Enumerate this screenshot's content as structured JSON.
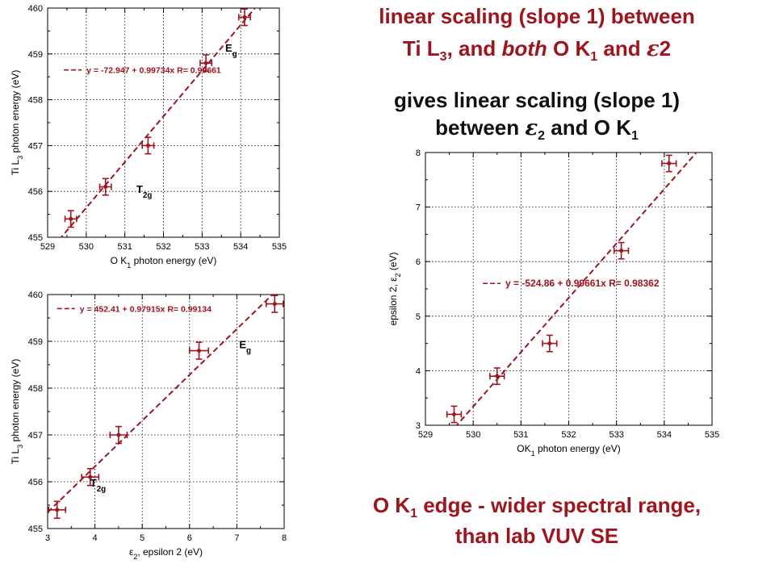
{
  "headings": {
    "line1": "linear scaling (slope 1) between",
    "line2_pre": "Ti L",
    "line2_sub": "3",
    "line2_mid": ", and ",
    "line2_ital": "both",
    "line2_mid2": " O K",
    "line2_sub2": "1",
    "line2_end": " and ",
    "line2_eps": "ε",
    "line2_epsnum": "2",
    "line3": "gives linear scaling (slope 1)",
    "line4_pre": "between ",
    "line4_eps": "ε",
    "line4_epssub": "2",
    "line4_mid": " and O K",
    "line4_sub": "1",
    "bottom1_pre": "O K",
    "bottom1_sub": "1",
    "bottom1_post": " edge - wider spectral range,",
    "bottom2": "than lab VUV SE"
  },
  "colors": {
    "accent": "#a0141e",
    "grid": "#000000"
  },
  "chart_data": [
    {
      "type": "scatter",
      "xlabel_pre": "O K",
      "xlabel_sub": "1",
      "xlabel_post": " photon energy (eV)",
      "ylabel_pre": "Ti L",
      "ylabel_sub": "3",
      "ylabel_post": " photon energy (eV)",
      "xlim": [
        529,
        535
      ],
      "ylim": [
        455,
        460
      ],
      "xticks": [
        "529",
        "530",
        "531",
        "532",
        "533",
        "534",
        "535"
      ],
      "yticks": [
        "455",
        "456",
        "457",
        "458",
        "459",
        "460"
      ],
      "grid": true,
      "fit_label": "y = -72.947 + 0.99734x   R= 0.99661",
      "fit": {
        "intercept": -72.947,
        "slope": 0.99734
      },
      "points": [
        {
          "x": 529.6,
          "y": 455.4,
          "xerr": 0.15,
          "yerr": 0.18
        },
        {
          "x": 530.5,
          "y": 456.1,
          "xerr": 0.15,
          "yerr": 0.18
        },
        {
          "x": 531.6,
          "y": 457.0,
          "xerr": 0.15,
          "yerr": 0.18
        },
        {
          "x": 533.1,
          "y": 458.8,
          "xerr": 0.15,
          "yerr": 0.18
        },
        {
          "x": 534.1,
          "y": 459.8,
          "xerr": 0.15,
          "yerr": 0.18
        }
      ],
      "annotations": [
        {
          "label": "E",
          "sub": "g",
          "x": 533.6,
          "y": 459.05
        },
        {
          "label": "T",
          "sub": "2g",
          "x": 531.3,
          "y": 455.97
        }
      ]
    },
    {
      "type": "scatter",
      "xlabel_pre": "ε",
      "xlabel_sub": "2",
      "xlabel_post": ", epsilon 2  (eV)",
      "ylabel_pre": "Ti L",
      "ylabel_sub": "3",
      "ylabel_post": " photon energy (eV)",
      "xlim": [
        3,
        8
      ],
      "ylim": [
        455,
        460
      ],
      "xticks": [
        "3",
        "4",
        "5",
        "6",
        "7",
        "8"
      ],
      "yticks": [
        "455",
        "456",
        "457",
        "458",
        "459",
        "460"
      ],
      "grid": true,
      "fit_label": "y = 452.41 + 0.97915x   R= 0.99134",
      "fit": {
        "intercept": 452.41,
        "slope": 0.97915
      },
      "points": [
        {
          "x": 3.2,
          "y": 455.4,
          "xerr": 0.18,
          "yerr": 0.18
        },
        {
          "x": 3.9,
          "y": 456.1,
          "xerr": 0.18,
          "yerr": 0.18
        },
        {
          "x": 4.5,
          "y": 457.0,
          "xerr": 0.18,
          "yerr": 0.18
        },
        {
          "x": 6.2,
          "y": 458.8,
          "xerr": 0.2,
          "yerr": 0.18
        },
        {
          "x": 7.8,
          "y": 459.8,
          "xerr": 0.18,
          "yerr": 0.18
        }
      ],
      "annotations": [
        {
          "label": "E",
          "sub": "g",
          "x": 7.05,
          "y": 458.85
        },
        {
          "label": "T",
          "sub": "2g",
          "x": 3.9,
          "y": 455.9
        }
      ]
    },
    {
      "type": "scatter",
      "xlabel_pre": "OK",
      "xlabel_sub": "1",
      "xlabel_post": " photon energy (eV)",
      "ylabel_pre": "epsilon 2, ε",
      "ylabel_sub": "2",
      "ylabel_post": " (eV)",
      "xlim": [
        529,
        535
      ],
      "ylim": [
        3,
        8
      ],
      "xticks": [
        "529",
        "530",
        "531",
        "532",
        "533",
        "534",
        "535"
      ],
      "yticks": [
        "3",
        "4",
        "5",
        "6",
        "7",
        "8"
      ],
      "grid": true,
      "fit_label": "y = -524.86 + 0.99661x   R= 0.98362",
      "fit": {
        "intercept": -524.86,
        "slope": 0.99661
      },
      "points": [
        {
          "x": 529.6,
          "y": 3.2,
          "xerr": 0.15,
          "yerr": 0.15
        },
        {
          "x": 530.5,
          "y": 3.9,
          "xerr": 0.15,
          "yerr": 0.15
        },
        {
          "x": 531.6,
          "y": 4.5,
          "xerr": 0.15,
          "yerr": 0.15
        },
        {
          "x": 533.1,
          "y": 6.2,
          "xerr": 0.15,
          "yerr": 0.15
        },
        {
          "x": 534.1,
          "y": 7.8,
          "xerr": 0.15,
          "yerr": 0.15
        }
      ],
      "annotations": []
    }
  ]
}
